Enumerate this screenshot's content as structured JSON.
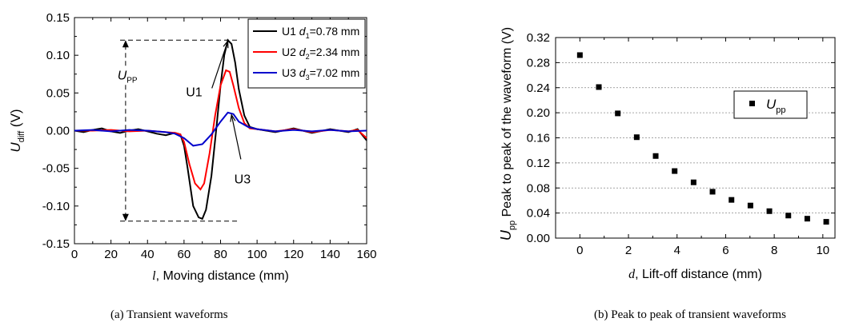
{
  "chart_data": [
    {
      "type": "line",
      "caption": "(a) Transient waveforms",
      "xlabel_var": "l",
      "xlabel_rest": ",  Moving distance (mm)",
      "ylabel_main": "U",
      "ylabel_sub": "diff",
      "ylabel_unit": "(V)",
      "xlim": [
        0,
        160
      ],
      "ylim": [
        -0.15,
        0.15
      ],
      "xticks": [
        "0",
        "20",
        "40",
        "60",
        "80",
        "100",
        "120",
        "140",
        "160"
      ],
      "yticks": [
        "-0.15",
        "-0.10",
        "-0.05",
        "0.00",
        "0.05",
        "0.10",
        "0.15"
      ],
      "grid": false,
      "legend_position": "top-right",
      "series": [
        {
          "name": "U1",
          "color": "#000000",
          "legend_var": "d",
          "legend_sub": "1",
          "legend_val": "=0.78 mm",
          "x": [
            0,
            5,
            10,
            15,
            20,
            25,
            30,
            35,
            40,
            45,
            50,
            55,
            58,
            60,
            62,
            65,
            68,
            70,
            72,
            75,
            78,
            80,
            82,
            84,
            86,
            88,
            90,
            93,
            96,
            100,
            110,
            120,
            130,
            140,
            150,
            155,
            160
          ],
          "y": [
            0,
            -0.002,
            0.001,
            0.003,
            -0.001,
            -0.003,
            0,
            0.002,
            -0.001,
            -0.004,
            -0.006,
            -0.003,
            -0.005,
            -0.02,
            -0.05,
            -0.1,
            -0.115,
            -0.117,
            -0.105,
            -0.06,
            0.01,
            0.06,
            0.1,
            0.12,
            0.115,
            0.09,
            0.055,
            0.02,
            0.005,
            0.002,
            -0.002,
            0.003,
            -0.003,
            0.002,
            -0.002,
            0.002,
            -0.013
          ]
        },
        {
          "name": "U2",
          "color": "#ff0000",
          "legend_var": "d",
          "legend_sub": "2",
          "legend_val": "=2.34 mm",
          "x": [
            0,
            10,
            20,
            30,
            40,
            50,
            55,
            58,
            60,
            63,
            66,
            69,
            71,
            74,
            77,
            80,
            83,
            85,
            87,
            90,
            93,
            96,
            100,
            110,
            120,
            130,
            140,
            150,
            155,
            160
          ],
          "y": [
            0,
            0,
            0.001,
            -0.001,
            0,
            -0.002,
            -0.003,
            -0.005,
            -0.015,
            -0.045,
            -0.07,
            -0.078,
            -0.07,
            -0.03,
            0.02,
            0.06,
            0.08,
            0.078,
            0.06,
            0.03,
            0.01,
            0.003,
            0.002,
            -0.001,
            0.002,
            -0.002,
            0.001,
            -0.001,
            0.001,
            -0.01
          ]
        },
        {
          "name": "U3",
          "color": "#0000cc",
          "legend_var": "d",
          "legend_sub": "3",
          "legend_val": "=7.02 mm",
          "x": [
            0,
            10,
            20,
            30,
            40,
            50,
            55,
            60,
            65,
            70,
            75,
            80,
            84,
            87,
            90,
            95,
            100,
            110,
            120,
            130,
            140,
            150,
            160
          ],
          "y": [
            0,
            0.001,
            -0.001,
            0.001,
            0,
            -0.002,
            -0.004,
            -0.01,
            -0.02,
            -0.018,
            -0.005,
            0.012,
            0.024,
            0.022,
            0.012,
            0.005,
            0.002,
            -0.001,
            0.001,
            -0.001,
            0.001,
            -0.001,
            0
          ]
        }
      ],
      "annotations": [
        {
          "text": "U1",
          "x": 70,
          "y": 0.052,
          "arrow_to_x": 84,
          "arrow_to_y": 0.119
        },
        {
          "text": "U3",
          "x": 92,
          "y": -0.055,
          "arrow_to_x": 86,
          "arrow_to_y": 0.021
        },
        {
          "text_main": "U",
          "text_sub": "PP",
          "x": 29,
          "y": 0.068
        }
      ],
      "upp_marker": {
        "x": 28,
        "top": 0.12,
        "bottom": -0.12,
        "line_x_end": 90
      }
    },
    {
      "type": "scatter",
      "caption": "(b) Peak to peak of transient waveforms",
      "xlabel_var": "d",
      "xlabel_rest": ", Lift-off distance  (mm)",
      "ylabel_main": "U",
      "ylabel_sub": "pp",
      "ylabel_rest": "  Peak to peak of the waveform (V)",
      "xlim": [
        -1,
        10.5
      ],
      "ylim": [
        0,
        0.32
      ],
      "xticks": [
        "0",
        "2",
        "4",
        "6",
        "8",
        "10"
      ],
      "yticks": [
        "0.00",
        "0.04",
        "0.08",
        "0.12",
        "0.16",
        "0.20",
        "0.24",
        "0.28",
        "0.32"
      ],
      "grid": true,
      "legend_position": "top-right",
      "series": [
        {
          "name_main": "U",
          "name_sub": "pp",
          "color": "#000000",
          "x": [
            0,
            0.78,
            1.56,
            2.34,
            3.12,
            3.9,
            4.68,
            5.46,
            6.24,
            7.02,
            7.8,
            8.58,
            9.36,
            10.14
          ],
          "y": [
            0.292,
            0.241,
            0.199,
            0.161,
            0.131,
            0.107,
            0.089,
            0.074,
            0.061,
            0.052,
            0.043,
            0.036,
            0.031,
            0.026
          ]
        }
      ]
    }
  ]
}
